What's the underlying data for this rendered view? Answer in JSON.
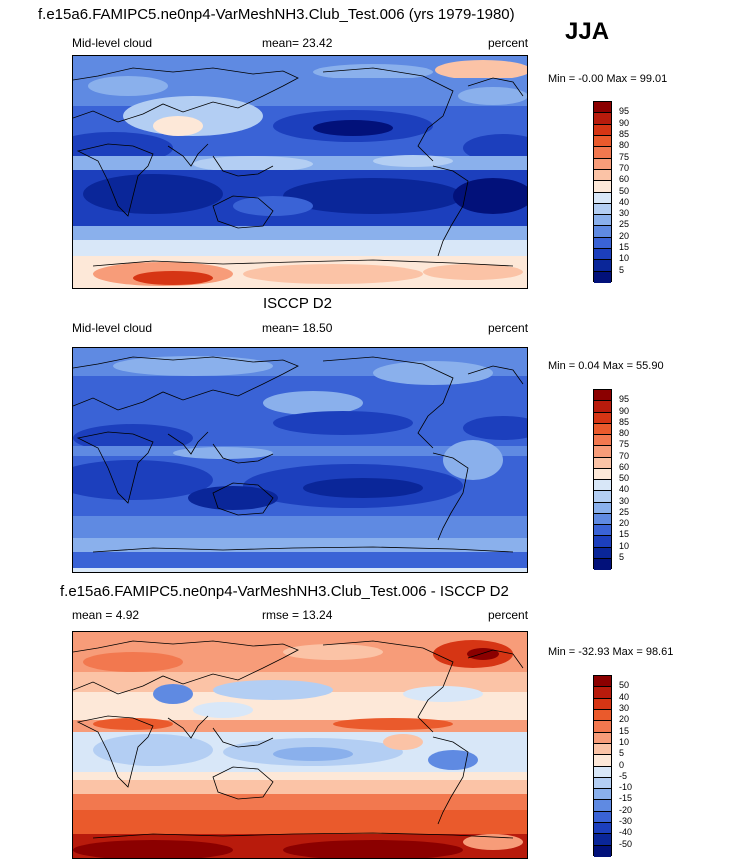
{
  "season": "JJA",
  "panels": [
    {
      "id": "model",
      "title": "f.e15a6.FAMIPC5.ne0np4-VarMeshNH3.Club_Test.006 (yrs 1979-1980)",
      "left_label": "Mid-level cloud",
      "center_label": "mean=  23.42",
      "right_label": "percent",
      "minmax": "Min =  -0.00 Max =  99.01",
      "colorbar_labels": [
        "95",
        "90",
        "85",
        "80",
        "75",
        "70",
        "60",
        "50",
        "40",
        "30",
        "25",
        "20",
        "15",
        "10",
        "5"
      ],
      "colorbar_colors": [
        "#8b0000",
        "#b81b0c",
        "#d63514",
        "#ea5a2c",
        "#f2784f",
        "#f79c79",
        "#fbc3a6",
        "#fde8d8",
        "#d8e7f8",
        "#b3cef3",
        "#8ab0ec",
        "#5f8ae2",
        "#3a63d6",
        "#1c3fbd",
        "#0a2699",
        "#02117a"
      ]
    },
    {
      "id": "obs",
      "title": "ISCCP D2",
      "left_label": "Mid-level cloud",
      "center_label": "mean=  18.50",
      "right_label": "percent",
      "minmax": "Min =   0.04 Max =  55.90",
      "colorbar_labels": [
        "95",
        "90",
        "85",
        "80",
        "75",
        "70",
        "60",
        "50",
        "40",
        "30",
        "25",
        "20",
        "15",
        "10",
        "5"
      ],
      "colorbar_colors": [
        "#8b0000",
        "#b81b0c",
        "#d63514",
        "#ea5a2c",
        "#f2784f",
        "#f79c79",
        "#fbc3a6",
        "#fde8d8",
        "#d8e7f8",
        "#b3cef3",
        "#8ab0ec",
        "#5f8ae2",
        "#3a63d6",
        "#1c3fbd",
        "#0a2699",
        "#02117a"
      ]
    },
    {
      "id": "diff",
      "title": "f.e15a6.FAMIPC5.ne0np4-VarMeshNH3.Club_Test.006 - ISCCP D2",
      "left_label": "mean =   4.92",
      "center_label": "rmse =  13.24",
      "right_label": "percent",
      "minmax": "Min = -32.93 Max =  98.61",
      "colorbar_labels": [
        "50",
        "40",
        "30",
        "20",
        "15",
        "10",
        "5",
        "0",
        "-5",
        "-10",
        "-15",
        "-20",
        "-30",
        "-40",
        "-50"
      ],
      "colorbar_colors": [
        "#8b0000",
        "#b81b0c",
        "#d63514",
        "#ea5a2c",
        "#f2784f",
        "#f79c79",
        "#fbc3a6",
        "#fde8d8",
        "#d8e7f8",
        "#b3cef3",
        "#8ab0ec",
        "#5f8ae2",
        "#3a63d6",
        "#1c3fbd",
        "#0a2699",
        "#02117a"
      ]
    }
  ]
}
